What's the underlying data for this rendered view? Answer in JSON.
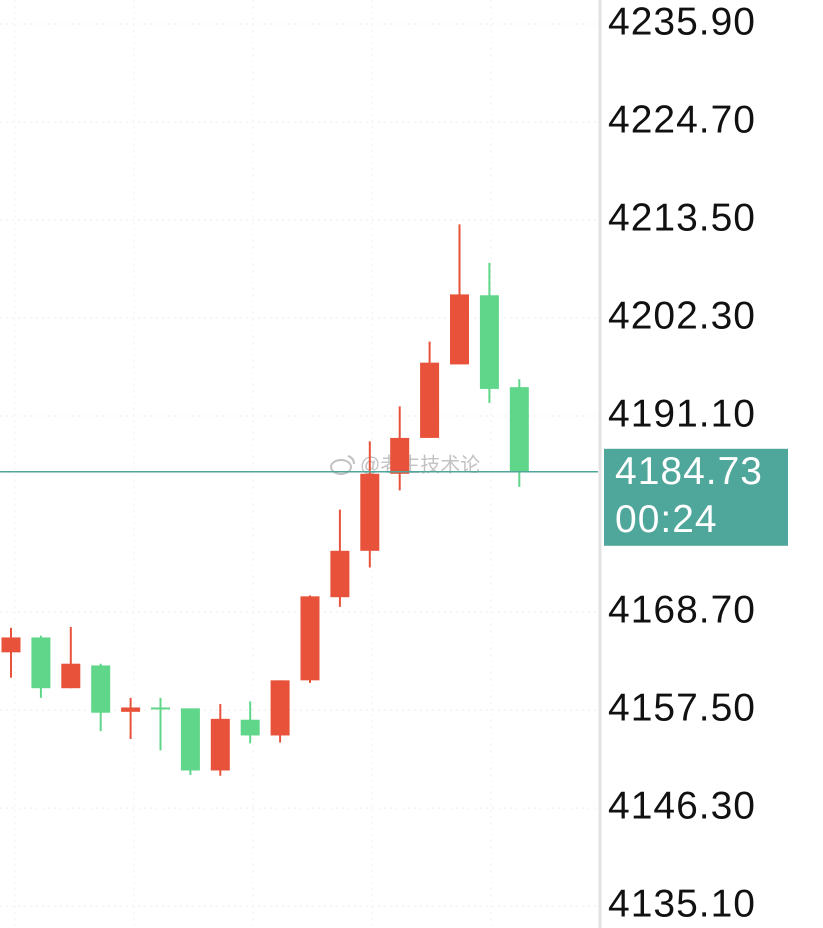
{
  "chart_data": {
    "type": "candlestick",
    "open": [
      4164.1,
      4165.8,
      4160.0,
      4162.6,
      4157.3,
      4157.8,
      4157.7,
      4150.6,
      4156.4,
      4154.6,
      4160.9,
      4170.4,
      4175.7,
      4184.5,
      4188.6,
      4197.0,
      4204.9,
      4194.4
    ],
    "high": [
      4166.9,
      4166.0,
      4167.0,
      4162.8,
      4158.9,
      4158.9,
      4157.7,
      4158.2,
      4158.5,
      4160.9,
      4170.6,
      4180.4,
      4188.2,
      4192.2,
      4199.6,
      4213.0,
      4208.6,
      4195.3
    ],
    "low": [
      4161.2,
      4158.9,
      4160.0,
      4155.1,
      4154.2,
      4152.9,
      4150.1,
      4150.0,
      4153.7,
      4153.8,
      4160.6,
      4169.3,
      4173.8,
      4182.6,
      4188.6,
      4197.0,
      4192.6,
      4183.0
    ],
    "close": [
      4165.8,
      4160.0,
      4162.8,
      4157.2,
      4157.8,
      4157.6,
      4150.6,
      4156.5,
      4154.6,
      4160.9,
      4170.5,
      4175.7,
      4184.5,
      4188.6,
      4197.2,
      4205.0,
      4194.2,
      4184.73
    ],
    "up_color": "#e8523a",
    "down_color": "#5fd68a",
    "ylim": [
      4132.6,
      4238.64
    ],
    "yticks": [
      {
        "value": 4135.1,
        "label": "4135.10"
      },
      {
        "value": 4146.3,
        "label": "4146.30"
      },
      {
        "value": 4157.5,
        "label": "4157.50"
      },
      {
        "value": 4168.7,
        "label": "4168.70"
      },
      {
        "value": 4191.1,
        "label": "4191.10"
      },
      {
        "value": 4202.3,
        "label": "4202.30"
      },
      {
        "value": 4213.5,
        "label": "4213.50"
      },
      {
        "value": 4224.7,
        "label": "4224.70"
      },
      {
        "value": 4235.9,
        "label": "4235.90"
      }
    ],
    "grid": true,
    "last_price": 4184.73,
    "last_price_color": "#4fa69a",
    "countdown": "00:24",
    "watermark": "@老生技术论"
  }
}
